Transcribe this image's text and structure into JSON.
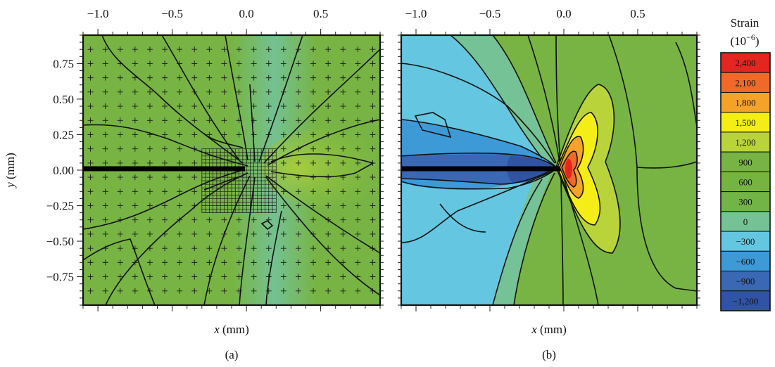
{
  "chart_data": [
    {
      "type": "heatmap",
      "panel_label": "(a)",
      "xlabel_var": "x",
      "xlabel_unit": " (mm)",
      "ylabel_var": "y",
      "ylabel_unit": " (mm)",
      "xlim": [
        -1.1,
        0.9
      ],
      "ylim": [
        -0.95,
        0.95
      ],
      "x_ticks": [
        -1.0,
        -0.5,
        0.0,
        0.5
      ],
      "x_tick_labels": [
        "−1.0",
        "−0.5",
        "0.0",
        "0.5"
      ],
      "y_ticks": [
        0.75,
        0.5,
        0.25,
        0.0,
        -0.25,
        -0.5,
        -0.75
      ],
      "y_tick_labels": [
        "0.75",
        "0.50",
        "0.25",
        "0.00",
        "−0.25",
        "−0.50",
        "−0.75"
      ],
      "crack": {
        "x_start": -1.1,
        "x_end": 0.0,
        "y": 0.0
      },
      "measurement_grid": {
        "coarse_spacing_mm": 0.1,
        "fine_region": {
          "x": [
            -0.3,
            0.2
          ],
          "y": [
            -0.3,
            0.15
          ]
        },
        "fine_spacing_mm": 0.025
      }
    },
    {
      "type": "heatmap",
      "panel_label": "(b)",
      "xlabel_var": "x",
      "xlabel_unit": " (mm)",
      "xlim": [
        -1.1,
        0.9
      ],
      "ylim": [
        -0.95,
        0.95
      ],
      "x_ticks": [
        -1.0,
        -0.5,
        0.0,
        0.5
      ],
      "x_tick_labels": [
        "−1.0",
        "−0.5",
        "0.0",
        "0.5"
      ],
      "crack": {
        "x_start": -1.1,
        "x_end": 0.0,
        "y": 0.0
      }
    }
  ],
  "colorbar": {
    "title": "Strain",
    "unit_base": "(10",
    "unit_exp": "−6",
    "unit_close": ")",
    "levels": [
      2400,
      2100,
      1800,
      1500,
      1200,
      900,
      600,
      300,
      0,
      -300,
      -600,
      -900,
      -1200
    ],
    "labels": [
      "2,400",
      "2,100",
      "1,800",
      "1,500",
      "1,200",
      "900",
      "600",
      "300",
      "0",
      "−300",
      "−600",
      "−900",
      "−1,200"
    ],
    "colors": [
      "#e3261f",
      "#ef6a28",
      "#f5a228",
      "#f4ee16",
      "#b9d33a",
      "#78b443",
      "#75b53f",
      "#72b446",
      "#74c295",
      "#64c6e0",
      "#3d9ad7",
      "#3a68b4",
      "#3153a3"
    ]
  }
}
